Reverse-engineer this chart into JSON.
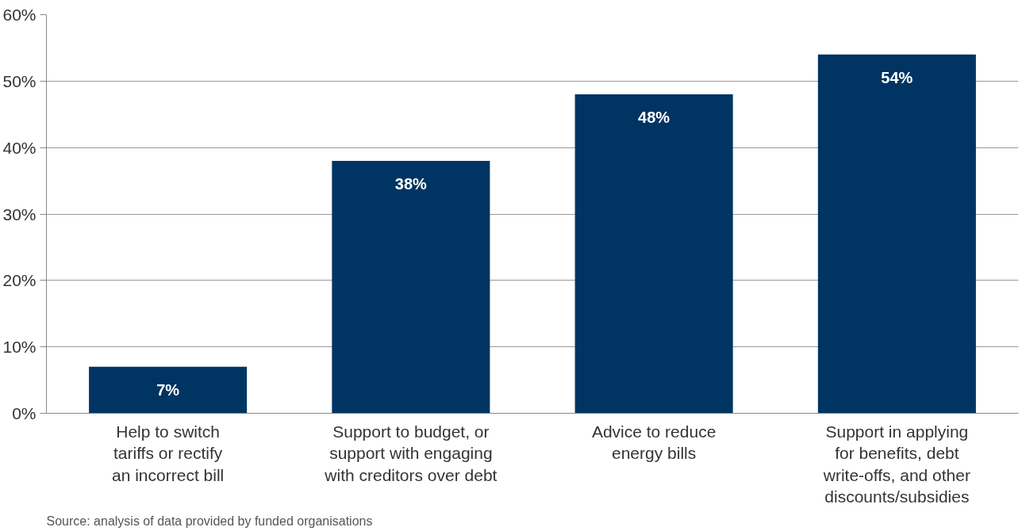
{
  "chart_data": {
    "type": "bar",
    "categories": [
      "Help to switch\ntariffs or rectify\nan incorrect bill",
      "Support to budget, or\nsupport with engaging\nwith creditors over debt",
      "Advice to reduce\nenergy bills",
      "Support in applying\nfor benefits, debt\nwrite-offs, and other\ndiscounts/subsidies"
    ],
    "values": [
      7,
      38,
      48,
      54
    ],
    "color": "#003462",
    "ylim": [
      0,
      60
    ],
    "yticks": [
      {
        "value": 0,
        "label": "0%"
      },
      {
        "value": 10,
        "label": "10%"
      },
      {
        "value": 20,
        "label": "20%"
      },
      {
        "value": 30,
        "label": "30%"
      },
      {
        "value": 40,
        "label": "40%"
      },
      {
        "value": 50,
        "label": "50%"
      },
      {
        "value": 60,
        "label": "60%"
      }
    ],
    "grid": "y",
    "value_labels": [
      "7%",
      "38%",
      "48%",
      "54%"
    ],
    "annotations": [
      "Source: analysis of data provided by funded organisations"
    ]
  }
}
